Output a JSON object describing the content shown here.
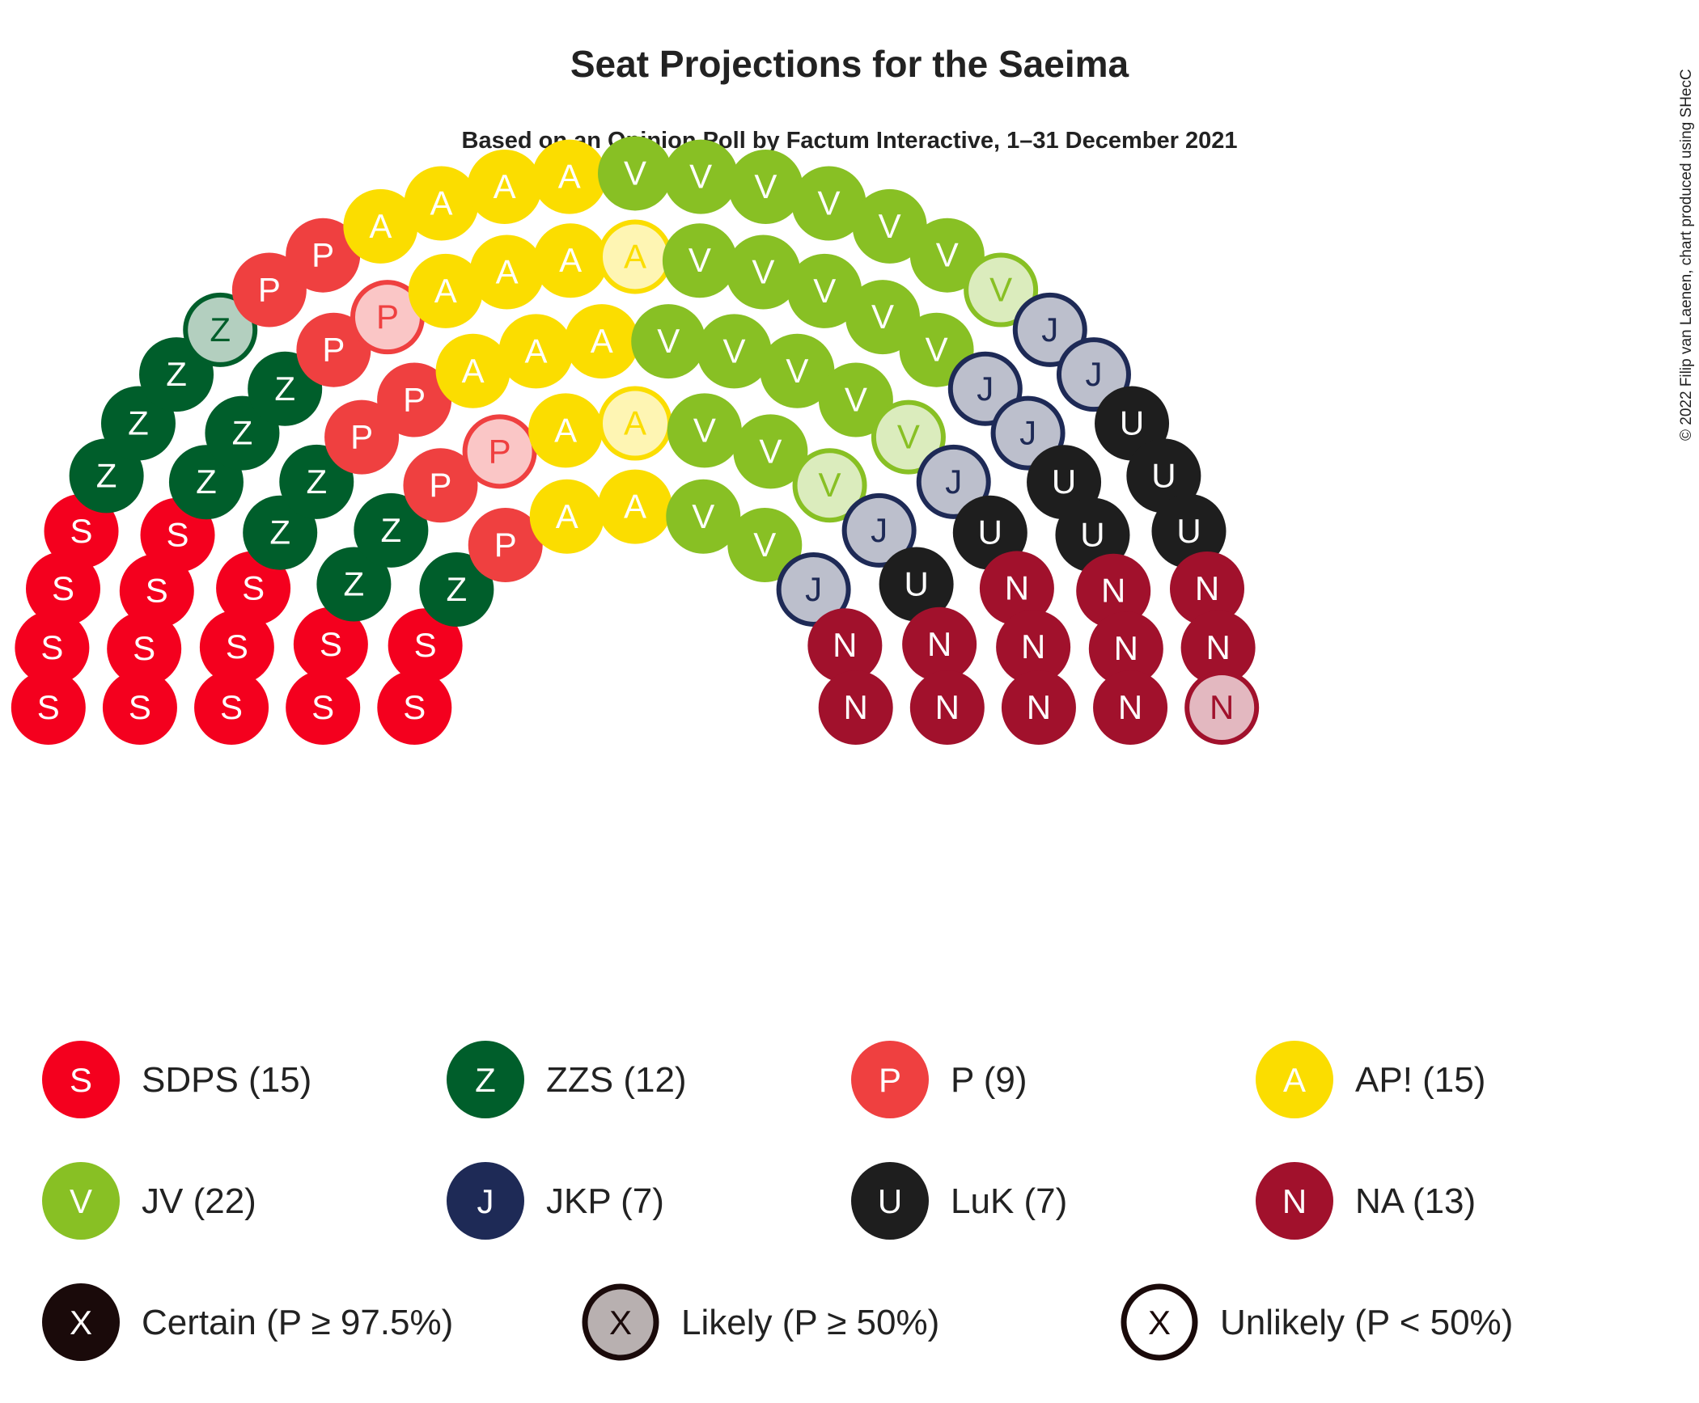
{
  "title": "Seat Projections for the Saeima",
  "subtitle": "Based on an Opinion Poll by Factum Interactive, 1–31 December 2021",
  "credit": "© 2022 Filip van Laenen, chart produced using SHecC",
  "chart_data": {
    "type": "parliament",
    "total_seats": 100,
    "parties": [
      {
        "letter": "S",
        "label": "SDPS (15)",
        "seats": 15,
        "color": "#f4001e",
        "certain": 15,
        "likely": 0,
        "unlikely": 0
      },
      {
        "letter": "Z",
        "label": "ZZS (12)",
        "seats": 12,
        "color": "#005e2b",
        "certain": 11,
        "likely": 1,
        "unlikely": 0
      },
      {
        "letter": "P",
        "label": "P (9)",
        "seats": 9,
        "color": "#ef4040",
        "certain": 7,
        "likely": 2,
        "unlikely": 0
      },
      {
        "letter": "A",
        "label": "AP! (15)",
        "seats": 15,
        "color": "#fbdd00",
        "certain": 13,
        "likely": 2,
        "unlikely": 0
      },
      {
        "letter": "V",
        "label": "JV (22)",
        "seats": 22,
        "color": "#88c024",
        "certain": 19,
        "likely": 3,
        "unlikely": 0
      },
      {
        "letter": "J",
        "label": "JKP (7)",
        "seats": 7,
        "color": "#1e2a56",
        "certain": 0,
        "likely": 7,
        "unlikely": 0
      },
      {
        "letter": "U",
        "label": "LuK (7)",
        "seats": 7,
        "color": "#1e1e1e",
        "certain": 7,
        "likely": 0,
        "unlikely": 0
      },
      {
        "letter": "N",
        "label": "NA (13)",
        "seats": 13,
        "color": "#a1112c",
        "certain": 12,
        "likely": 1,
        "unlikely": 0
      }
    ],
    "probability_legend": [
      {
        "key": "certain",
        "letter": "X",
        "label": "Certain (P ≥ 97.5%)"
      },
      {
        "key": "likely",
        "letter": "X",
        "label": "Likely (P ≥ 50%)"
      },
      {
        "key": "unlikely",
        "letter": "X",
        "label": "Unlikely (P < 50%)"
      }
    ]
  }
}
